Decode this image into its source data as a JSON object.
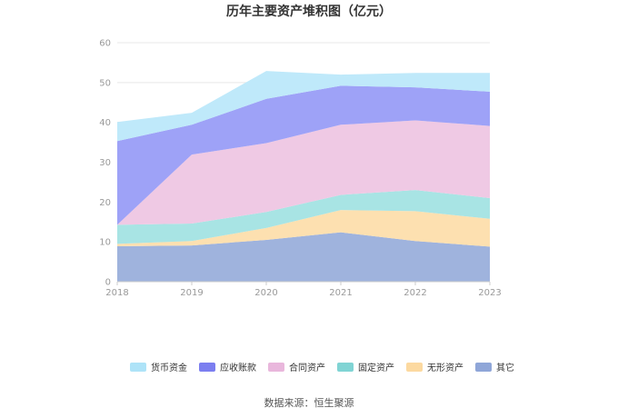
{
  "chart_data": {
    "type": "area",
    "stacked": true,
    "title": "历年主要资产堆积图（亿元）",
    "categories": [
      "2018",
      "2019",
      "2020",
      "2021",
      "2022",
      "2023"
    ],
    "yticks": [
      "0",
      "10",
      "20",
      "30",
      "40",
      "50",
      "60"
    ],
    "ylim": [
      0,
      60
    ],
    "grid": true,
    "legend_position": "bottom",
    "series": [
      {
        "name": "其它",
        "color": "#9fb3dd",
        "values": [
          8.9,
          9.1,
          10.5,
          12.4,
          10.2,
          8.8
        ]
      },
      {
        "name": "无形资产",
        "color": "#fde0b0",
        "values": [
          0.6,
          1.1,
          3.0,
          5.6,
          7.5,
          7.0
        ]
      },
      {
        "name": "固定资产",
        "color": "#a8e4e4",
        "values": [
          4.8,
          4.4,
          4.0,
          3.8,
          5.3,
          5.2
        ]
      },
      {
        "name": "合同资产",
        "color": "#efc9e4",
        "values": [
          0.0,
          17.3,
          17.3,
          17.6,
          17.5,
          18.1
        ]
      },
      {
        "name": "应收账款",
        "color": "#9ea2f7",
        "values": [
          21.0,
          7.5,
          11.1,
          9.8,
          8.3,
          8.6
        ]
      },
      {
        "name": "货币资金",
        "color": "#bfe9fa",
        "values": [
          4.8,
          3.0,
          7.0,
          2.8,
          3.6,
          4.7
        ]
      }
    ],
    "legend": [
      {
        "name": "货币资金",
        "color": "#aee3f8"
      },
      {
        "name": "应收账款",
        "color": "#7b7ef0"
      },
      {
        "name": "合同资产",
        "color": "#e9b7dc"
      },
      {
        "name": "固定资产",
        "color": "#80d4d4"
      },
      {
        "name": "无形资产",
        "color": "#fcd9a0"
      },
      {
        "name": "其它",
        "color": "#8fa6d8"
      }
    ]
  },
  "source": "数据来源：恒生聚源"
}
